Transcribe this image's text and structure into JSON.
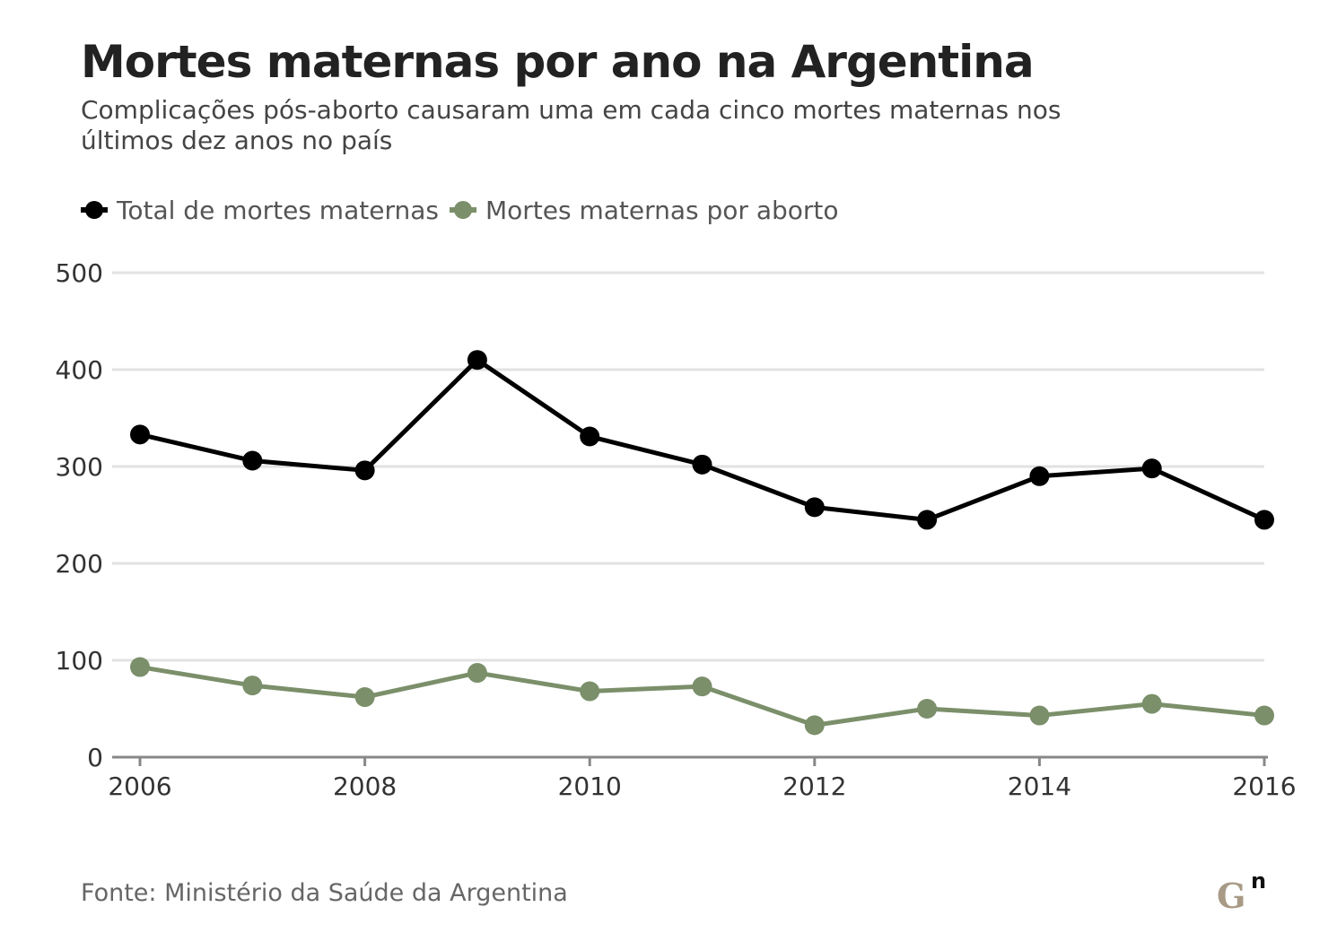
{
  "title": "Mortes maternas por ano na Argentina",
  "subtitle": "Complicações pós-aborto causaram uma em cada cinco mortes maternas nos últimos dez anos no país",
  "source": "Fonte: Ministério da Saúde da Argentina",
  "logo": {
    "text": "Gn"
  },
  "colors": {
    "total": "#000000",
    "aborto": "#7b8f6a",
    "grid": "#e2e2e2",
    "axis": "#888888",
    "text": "#333333"
  },
  "chart_data": {
    "type": "line",
    "x": [
      2006,
      2007,
      2008,
      2009,
      2010,
      2011,
      2012,
      2013,
      2014,
      2015,
      2016
    ],
    "x_ticks": [
      "2006",
      "2008",
      "2010",
      "2012",
      "2014",
      "2016"
    ],
    "y_ticks": [
      "0",
      "100",
      "200",
      "300",
      "400",
      "500"
    ],
    "ylim": [
      0,
      500
    ],
    "xlim": [
      2006,
      2016
    ],
    "grid": true,
    "legend_position": "top-left",
    "series": [
      {
        "name": "Total de mortes maternas",
        "color": "#000000",
        "values": [
          333,
          306,
          296,
          410,
          331,
          302,
          258,
          245,
          290,
          298,
          245
        ]
      },
      {
        "name": "Mortes maternas por aborto",
        "color": "#7b8f6a",
        "values": [
          93,
          74,
          62,
          87,
          68,
          73,
          33,
          50,
          43,
          55,
          43
        ]
      }
    ]
  }
}
